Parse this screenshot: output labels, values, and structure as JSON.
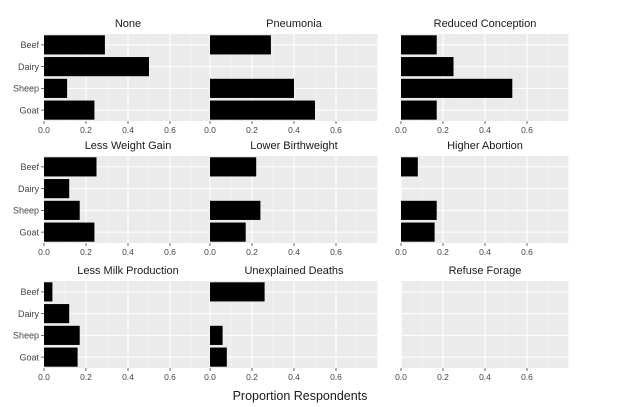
{
  "chart_data": {
    "type": "bar",
    "orientation": "horizontal",
    "xlabel": "Proportion Respondents",
    "categories": [
      "Beef",
      "Dairy",
      "Sheep",
      "Goat"
    ],
    "xlim": [
      0,
      0.8
    ],
    "xticks": [
      0.0,
      0.2,
      0.4,
      0.6
    ],
    "xtick_labels": [
      "0.0",
      "0.2",
      "0.4",
      "0.6"
    ],
    "grid": true,
    "bar_color": "#000000",
    "panel_background": "#ebebeb",
    "panels": [
      {
        "title": "None",
        "values": [
          0.29,
          0.5,
          0.11,
          0.24
        ]
      },
      {
        "title": "Pneumonia",
        "values": [
          0.29,
          null,
          0.4,
          0.5
        ]
      },
      {
        "title": "Reduced Conception",
        "values": [
          0.17,
          0.25,
          0.53,
          0.17
        ]
      },
      {
        "title": "Less Weight Gain",
        "values": [
          0.25,
          0.12,
          0.17,
          0.24
        ]
      },
      {
        "title": "Lower Birthweight",
        "values": [
          0.22,
          null,
          0.24,
          0.17
        ]
      },
      {
        "title": "Higher Abortion",
        "values": [
          0.08,
          null,
          0.17,
          0.16
        ]
      },
      {
        "title": "Less Milk Production",
        "values": [
          0.04,
          0.12,
          0.17,
          0.16
        ]
      },
      {
        "title": "Unexplained Deaths",
        "values": [
          0.26,
          null,
          0.06,
          0.08
        ]
      },
      {
        "title": "Refuse Forage",
        "values": [
          null,
          null,
          null,
          null
        ]
      }
    ]
  }
}
